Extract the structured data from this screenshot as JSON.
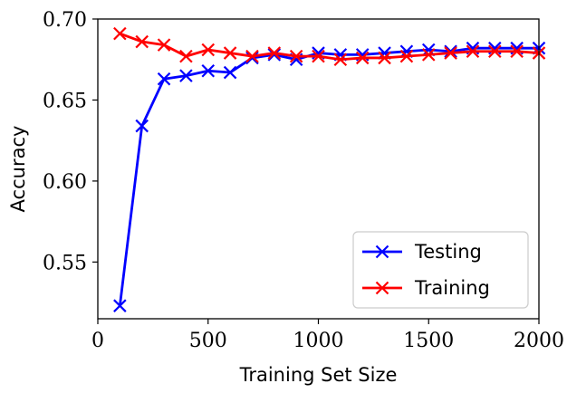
{
  "chart_data": {
    "type": "line",
    "title": "",
    "xlabel": "Training Set Size",
    "ylabel": "Accuracy",
    "xlim": [
      0,
      2000
    ],
    "ylim": [
      0.515,
      0.7
    ],
    "x_ticks": [
      0,
      500,
      1000,
      1500,
      2000
    ],
    "x_tick_labels": [
      "0",
      "500",
      "1000",
      "1500",
      "2000"
    ],
    "y_ticks": [
      0.55,
      0.6,
      0.65,
      0.7
    ],
    "y_tick_labels": [
      "0.55",
      "0.60",
      "0.65",
      "0.70"
    ],
    "grid": false,
    "legend_position": "lower-right",
    "x": [
      100,
      200,
      300,
      400,
      500,
      600,
      700,
      800,
      900,
      1000,
      1100,
      1200,
      1300,
      1400,
      1500,
      1600,
      1700,
      1800,
      1900,
      2000
    ],
    "series": [
      {
        "name": "Testing",
        "color": "#0000ff",
        "marker": "x",
        "values": [
          0.523,
          0.634,
          0.663,
          0.665,
          0.668,
          0.667,
          0.676,
          0.678,
          0.675,
          0.679,
          0.678,
          0.678,
          0.679,
          0.68,
          0.681,
          0.68,
          0.682,
          0.682,
          0.682,
          0.682
        ]
      },
      {
        "name": "Training",
        "color": "#ff0000",
        "marker": "x",
        "values": [
          0.691,
          0.686,
          0.684,
          0.677,
          0.681,
          0.679,
          0.677,
          0.679,
          0.677,
          0.677,
          0.675,
          0.676,
          0.676,
          0.677,
          0.678,
          0.679,
          0.68,
          0.68,
          0.68,
          0.679
        ]
      }
    ]
  }
}
